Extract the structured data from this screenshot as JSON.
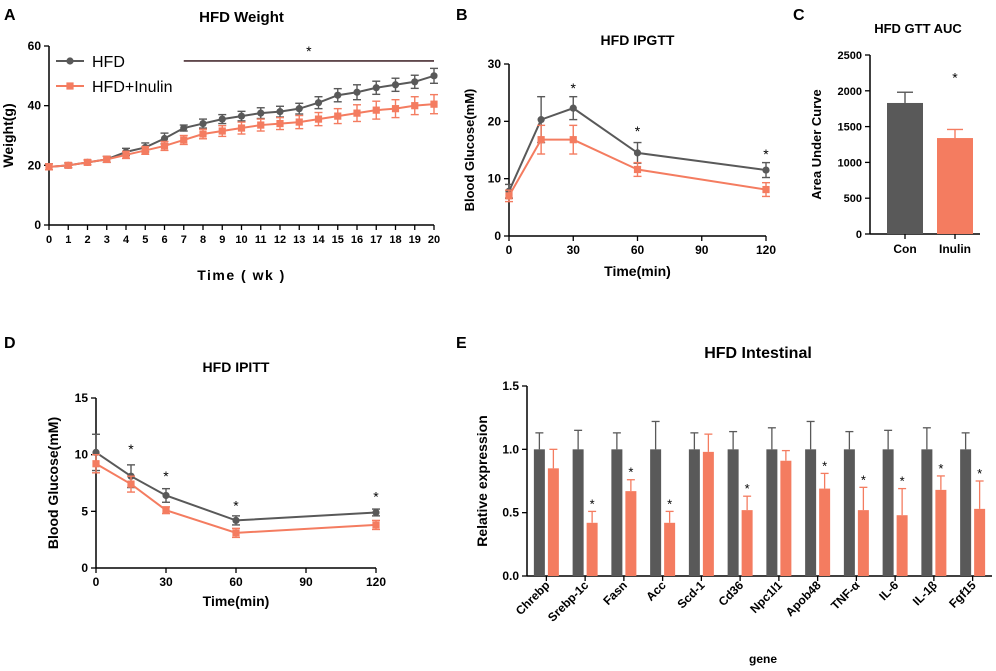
{
  "colors": {
    "hfd": "#595959",
    "inulin": "#f47c60",
    "axis": "#000000",
    "sig_line": "#4a2e33"
  },
  "chart_data": [
    {
      "panel": "A",
      "type": "line",
      "title": "HFD Weight",
      "xlabel": "Time ( wk )",
      "ylabel": "Weight(g)",
      "xlim": [
        0,
        20
      ],
      "ylim": [
        0,
        60
      ],
      "yticks": [
        0,
        20,
        40,
        60
      ],
      "x": [
        0,
        1,
        2,
        3,
        4,
        5,
        6,
        7,
        8,
        9,
        10,
        11,
        12,
        13,
        14,
        15,
        16,
        17,
        18,
        19,
        20
      ],
      "legend": "top-left",
      "series": [
        {
          "name": "HFD",
          "color": "#595959",
          "marker": "circle",
          "values": [
            19.5,
            20,
            21,
            22,
            24.5,
            26,
            29,
            32.5,
            34,
            35.5,
            36.5,
            37.5,
            38,
            39,
            41,
            43.5,
            44.5,
            46,
            47,
            48,
            50
          ],
          "errors": [
            1,
            0.8,
            0.8,
            1,
            1.2,
            1.5,
            1.8,
            1,
            1.5,
            1.5,
            1.6,
            1.8,
            1.8,
            1.8,
            2,
            2.2,
            2.5,
            2.2,
            2.2,
            2.2,
            2.5
          ]
        },
        {
          "name": "HFD+Inulin",
          "color": "#f47c60",
          "marker": "square",
          "values": [
            19.5,
            20,
            21,
            22,
            23.5,
            25,
            26.5,
            28.5,
            30.5,
            31.5,
            32.5,
            33.5,
            34,
            34.5,
            35.5,
            36.5,
            37.5,
            38.5,
            39,
            40,
            40.5
          ],
          "errors": [
            1,
            0.8,
            0.8,
            1,
            1.2,
            1.3,
            1.5,
            1.5,
            1.6,
            1.8,
            2,
            2,
            2,
            2.2,
            2.2,
            2.5,
            2.8,
            3,
            3,
            3,
            3.2
          ]
        }
      ],
      "significance": {
        "x_start": 7,
        "x_end": 20,
        "y": 55,
        "label": "*"
      }
    },
    {
      "panel": "B",
      "type": "line",
      "title": "HFD IPGTT",
      "xlabel": "Time(min)",
      "ylabel": "Blood Glucose(mM)",
      "xlim": [
        0,
        120
      ],
      "ylim": [
        0,
        30
      ],
      "xticks": [
        0,
        30,
        60,
        90,
        120
      ],
      "yticks": [
        0,
        10,
        20,
        30
      ],
      "x": [
        0,
        15,
        30,
        60,
        120
      ],
      "series": [
        {
          "name": "HFD",
          "color": "#595959",
          "marker": "circle",
          "values": [
            7.8,
            20.3,
            22.3,
            14.5,
            11.5
          ],
          "errors": [
            1.2,
            4,
            2,
            1.8,
            1.3
          ]
        },
        {
          "name": "HFD+Inulin",
          "color": "#f47c60",
          "marker": "square",
          "values": [
            7,
            16.8,
            16.8,
            11.6,
            8.1
          ],
          "errors": [
            1,
            2.5,
            2.5,
            1.2,
            1.2
          ]
        }
      ],
      "annotations": [
        {
          "x": 30,
          "y": 26,
          "text": "*"
        },
        {
          "x": 60,
          "y": 18.5,
          "text": "*"
        },
        {
          "x": 120,
          "y": 14.5,
          "text": "*"
        }
      ]
    },
    {
      "panel": "C",
      "type": "bar",
      "title": "HFD GTT AUC",
      "ylabel": "Area Under Curve",
      "ylim": [
        0,
        2500
      ],
      "yticks": [
        0,
        500,
        1000,
        1500,
        2000,
        2500
      ],
      "categories": [
        "Con",
        "Inulin"
      ],
      "values": [
        1830,
        1340
      ],
      "errors": [
        150,
        120
      ],
      "bar_colors": [
        "#595959",
        "#f47c60"
      ],
      "annotations": [
        {
          "category": "Inulin",
          "y": 2200,
          "text": "*"
        }
      ]
    },
    {
      "panel": "D",
      "type": "line",
      "title": "HFD IPITT",
      "xlabel": "Time(min)",
      "ylabel": "Blood Glucose(mM)",
      "xlim": [
        0,
        120
      ],
      "ylim": [
        0,
        15
      ],
      "xticks": [
        0,
        30,
        60,
        90,
        120
      ],
      "yticks": [
        0,
        5,
        10,
        15
      ],
      "x": [
        0,
        15,
        30,
        60,
        120
      ],
      "series": [
        {
          "name": "HFD",
          "color": "#595959",
          "marker": "circle",
          "values": [
            10.2,
            8.1,
            6.4,
            4.2,
            4.9
          ],
          "errors": [
            1.6,
            1,
            0.6,
            0.4,
            0.3
          ]
        },
        {
          "name": "HFD+Inulin",
          "color": "#f47c60",
          "marker": "square",
          "values": [
            9.2,
            7.4,
            5.1,
            3.1,
            3.8
          ],
          "errors": [
            0.8,
            0.7,
            0.3,
            0.4,
            0.4
          ]
        }
      ],
      "annotations": [
        {
          "x": 15,
          "y": 10.6,
          "text": "*"
        },
        {
          "x": 30,
          "y": 8.2,
          "text": "*"
        },
        {
          "x": 60,
          "y": 5.6,
          "text": "*"
        },
        {
          "x": 120,
          "y": 6.4,
          "text": "*"
        }
      ]
    },
    {
      "panel": "E",
      "type": "bar",
      "title": "HFD Intestinal",
      "xlabel": "gene",
      "ylabel": "Relative expression",
      "ylim": [
        0,
        1.5
      ],
      "yticks": [
        0.0,
        0.5,
        1.0,
        1.5
      ],
      "categories": [
        "Chrebp",
        "Srebp-1c",
        "Fasn",
        "Acc",
        "Scd-1",
        "Cd36",
        "Npc1l1",
        "Apob48",
        "TNF-α",
        "IL-6",
        "IL-1β",
        "Fgf15"
      ],
      "series": [
        {
          "name": "HFD",
          "color": "#595959",
          "values": [
            1,
            1,
            1,
            1,
            1,
            1,
            1,
            1,
            1,
            1,
            1,
            1
          ],
          "errors": [
            0.13,
            0.15,
            0.13,
            0.22,
            0.13,
            0.14,
            0.17,
            0.22,
            0.14,
            0.15,
            0.17,
            0.13
          ]
        },
        {
          "name": "HFD+Inulin",
          "color": "#f47c60",
          "values": [
            0.85,
            0.42,
            0.67,
            0.42,
            0.98,
            0.52,
            0.91,
            0.69,
            0.52,
            0.48,
            0.68,
            0.53
          ],
          "errors": [
            0.15,
            0.09,
            0.09,
            0.09,
            0.14,
            0.11,
            0.08,
            0.12,
            0.18,
            0.21,
            0.11,
            0.22
          ]
        }
      ],
      "significant": [
        false,
        true,
        true,
        true,
        false,
        true,
        false,
        true,
        true,
        true,
        true,
        true
      ]
    }
  ]
}
